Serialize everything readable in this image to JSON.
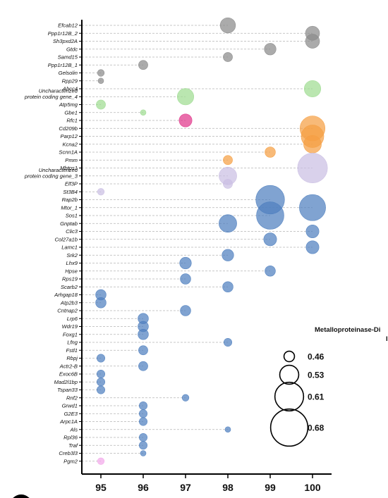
{
  "chart_data": {
    "type": "scatter",
    "title": "",
    "xlabel": "",
    "ylabel": "",
    "xlim": [
      94.55,
      100.45
    ],
    "xticks": [
      95,
      96,
      97,
      98,
      99,
      100
    ],
    "xtick_labels": [
      "95",
      "96",
      "97",
      "98",
      "99",
      "100"
    ],
    "grid": false,
    "legend": {
      "title": "Metalloproteinase-Di",
      "title_line2": "I",
      "placement": "right",
      "sizes": [
        0.46,
        0.53,
        0.61,
        0.68
      ],
      "labels": [
        "0.46",
        "0.53",
        "0.61",
        "0.68"
      ]
    },
    "colors": {
      "gray": "#8a8a8a",
      "green": "#9fdc92",
      "pink": "#e0368a",
      "orange": "#f5a044",
      "lavender": "#cbbfe3",
      "blue": "#4f7fbf",
      "lightpink": "#f3a9ea"
    },
    "genes": [
      {
        "label": "Efcab12",
        "x": 98,
        "size": 0.5,
        "color": "gray"
      },
      {
        "label": "Ppp1r12B_2",
        "x": 100,
        "size": 0.49,
        "color": "gray"
      },
      {
        "label": "Sh3pxd2A",
        "x": 100,
        "size": 0.49,
        "color": "gray"
      },
      {
        "label": "Gtdc",
        "x": 99,
        "size": 0.47,
        "color": "gray"
      },
      {
        "label": "Samd15",
        "x": 98,
        "size": 0.45,
        "color": "gray"
      },
      {
        "label": "Ppp1r12B_1",
        "x": 96,
        "size": 0.45,
        "color": "gray"
      },
      {
        "label": "Gelsolin",
        "x": 95,
        "size": 0.43,
        "color": "gray"
      },
      {
        "label": "Rpp29",
        "x": 95,
        "size": 0.42,
        "color": "gray"
      },
      {
        "label": "Abcc4",
        "x": 100,
        "size": 0.51,
        "color": "green"
      },
      {
        "label": "Uncharacterized",
        "label2": "protein coding gene_4",
        "x": 97,
        "size": 0.51,
        "color": "green"
      },
      {
        "label": "Atp5mg",
        "x": 95,
        "size": 0.45,
        "color": "green"
      },
      {
        "label": "Gbe1",
        "x": 96,
        "size": 0.42,
        "color": "green"
      },
      {
        "label": "Rfc1",
        "x": 97,
        "size": 0.48,
        "color": "pink"
      },
      {
        "label": "Cd209b",
        "x": 100,
        "size": 0.58,
        "color": "orange"
      },
      {
        "label": "Parp12",
        "x": 100,
        "size": 0.56,
        "color": "orange"
      },
      {
        "label": "Kcna2",
        "x": 100,
        "size": 0.52,
        "color": "orange"
      },
      {
        "label": "Scnn1A",
        "x": 99,
        "size": 0.46,
        "color": "orange"
      },
      {
        "label": "Pmm",
        "x": 98,
        "size": 0.45,
        "color": "orange"
      },
      {
        "label": "Mbtps1",
        "x": 100,
        "size": 0.62,
        "color": "lavender"
      },
      {
        "label": "Uncharacterized",
        "label2": "protein coding gene_3",
        "x": 98,
        "size": 0.52,
        "color": "lavender"
      },
      {
        "label": "Elf3P",
        "x": 98,
        "size": 0.45,
        "color": "lavender"
      },
      {
        "label": "St3B4",
        "x": 95,
        "size": 0.43,
        "color": "lavender"
      },
      {
        "label": "Rap2b",
        "x": 99,
        "size": 0.61,
        "color": "blue"
      },
      {
        "label": "Mtor_1",
        "x": 100,
        "size": 0.59,
        "color": "blue"
      },
      {
        "label": "Sos1",
        "x": 99,
        "size": 0.6,
        "color": "blue"
      },
      {
        "label": "Gnptab",
        "x": 98,
        "size": 0.52,
        "color": "blue"
      },
      {
        "label": "Clic3",
        "x": 100,
        "size": 0.48,
        "color": "blue"
      },
      {
        "label": "Col27a1b",
        "x": 99,
        "size": 0.48,
        "color": "blue"
      },
      {
        "label": "Lamc1",
        "x": 100,
        "size": 0.48,
        "color": "blue"
      },
      {
        "label": "Srk2",
        "x": 98,
        "size": 0.47,
        "color": "blue"
      },
      {
        "label": "Lhx9",
        "x": 97,
        "size": 0.47,
        "color": "blue"
      },
      {
        "label": "Hpse",
        "x": 99,
        "size": 0.46,
        "color": "blue"
      },
      {
        "label": "Rps19",
        "x": 97,
        "size": 0.46,
        "color": "blue"
      },
      {
        "label": "Scarb2",
        "x": 98,
        "size": 0.46,
        "color": "blue"
      },
      {
        "label": "Arhgap18",
        "x": 95,
        "size": 0.46,
        "color": "blue"
      },
      {
        "label": "Atp2b3",
        "x": 95,
        "size": 0.46,
        "color": "blue"
      },
      {
        "label": "Cntnap2",
        "x": 97,
        "size": 0.46,
        "color": "blue"
      },
      {
        "label": "Lrp6",
        "x": 96,
        "size": 0.46,
        "color": "blue"
      },
      {
        "label": "Wdr19",
        "x": 96,
        "size": 0.46,
        "color": "blue"
      },
      {
        "label": "Foxg1",
        "x": 96,
        "size": 0.46,
        "color": "blue"
      },
      {
        "label": "Lfng",
        "x": 98,
        "size": 0.44,
        "color": "blue"
      },
      {
        "label": "Fstl1",
        "x": 96,
        "size": 0.45,
        "color": "blue"
      },
      {
        "label": "Rbpj",
        "x": 95,
        "size": 0.44,
        "color": "blue"
      },
      {
        "label": "Actr2-B",
        "x": 96,
        "size": 0.45,
        "color": "blue"
      },
      {
        "label": "Exoc6B",
        "x": 95,
        "size": 0.44,
        "color": "blue"
      },
      {
        "label": "Mad2l1bp",
        "x": 95,
        "size": 0.44,
        "color": "blue"
      },
      {
        "label": "Tspan33",
        "x": 95,
        "size": 0.44,
        "color": "blue"
      },
      {
        "label": "Rnf2",
        "x": 97,
        "size": 0.43,
        "color": "blue"
      },
      {
        "label": "Grwd1",
        "x": 96,
        "size": 0.44,
        "color": "blue"
      },
      {
        "label": "G2E3",
        "x": 96,
        "size": 0.44,
        "color": "blue"
      },
      {
        "label": "Arpc1A",
        "x": 96,
        "size": 0.44,
        "color": "blue"
      },
      {
        "label": "Als",
        "x": 98,
        "size": 0.42,
        "color": "blue"
      },
      {
        "label": "Rpl36",
        "x": 96,
        "size": 0.44,
        "color": "blue"
      },
      {
        "label": "Traf",
        "x": 96,
        "size": 0.44,
        "color": "blue"
      },
      {
        "label": "Creb3l3",
        "x": 96,
        "size": 0.42,
        "color": "blue"
      },
      {
        "label": "Pgm2",
        "x": 95,
        "size": 0.43,
        "color": "lightpink"
      }
    ]
  }
}
